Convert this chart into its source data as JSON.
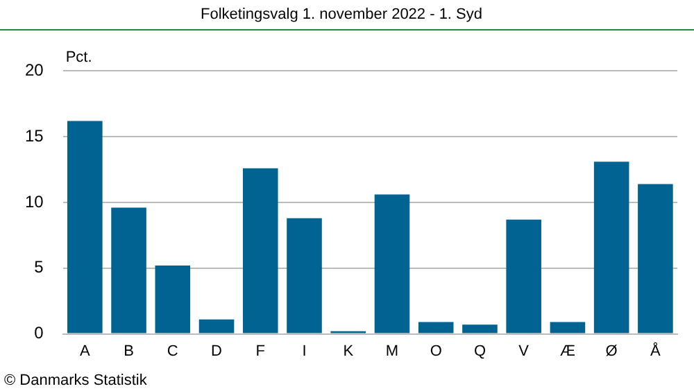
{
  "chart_data": {
    "type": "bar",
    "title": "Folketingsvalg 1. november 2022 - 1. Syd",
    "ylabel": "Pct.",
    "categories": [
      "A",
      "B",
      "C",
      "D",
      "F",
      "I",
      "K",
      "M",
      "O",
      "Q",
      "V",
      "Æ",
      "Ø",
      "Å"
    ],
    "values": [
      16.2,
      9.6,
      5.2,
      1.1,
      12.6,
      8.8,
      0.2,
      10.6,
      0.9,
      0.7,
      8.7,
      0.9,
      13.1,
      11.4
    ],
    "color": "#006391",
    "ylim": [
      0,
      20
    ],
    "yticks": [
      0,
      5,
      10,
      15,
      20
    ],
    "grid": "y",
    "annotations": [
      "© Danmarks Statistik"
    ]
  }
}
